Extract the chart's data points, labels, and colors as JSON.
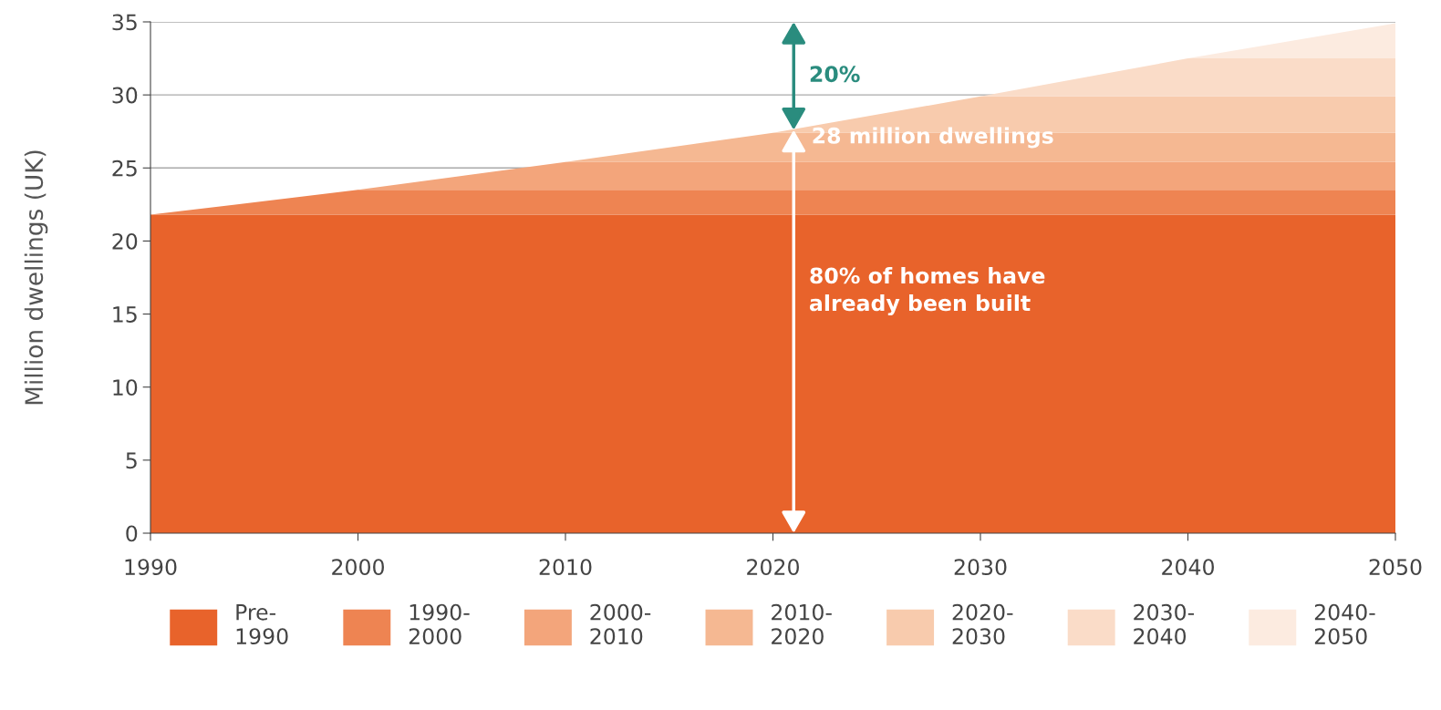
{
  "chart_data": {
    "type": "area",
    "stacked": true,
    "ylabel": "Million dwellings (UK)",
    "x": [
      1990,
      2000,
      2010,
      2020,
      2030,
      2040,
      2050
    ],
    "series": [
      {
        "name": "Pre-\n1990",
        "color": "#e8632b",
        "values": [
          21.8,
          21.8,
          21.8,
          21.8,
          21.8,
          21.8,
          21.8
        ]
      },
      {
        "name": "1990-\n2000",
        "color": "#ee8452",
        "values": [
          0,
          1.7,
          1.7,
          1.7,
          1.7,
          1.7,
          1.7
        ]
      },
      {
        "name": "2000-\n2010",
        "color": "#f3a57b",
        "values": [
          0,
          0,
          1.9,
          1.9,
          1.9,
          1.9,
          1.9
        ]
      },
      {
        "name": "2010-\n2020",
        "color": "#f5b892",
        "values": [
          0,
          0,
          0,
          2.0,
          2.0,
          2.0,
          2.0
        ]
      },
      {
        "name": "2020-\n2030",
        "color": "#f8cbad",
        "values": [
          0,
          0,
          0,
          0,
          2.5,
          2.5,
          2.5
        ]
      },
      {
        "name": "2030-\n2040",
        "color": "#fadcc8",
        "values": [
          0,
          0,
          0,
          0,
          0,
          2.6,
          2.6
        ]
      },
      {
        "name": "2040-\n2050",
        "color": "#fcebe0",
        "values": [
          0,
          0,
          0,
          0,
          0,
          0,
          2.4
        ]
      }
    ],
    "xlim": [
      1990,
      2050
    ],
    "xticks": [
      1990,
      2000,
      2010,
      2020,
      2030,
      2040,
      2050
    ],
    "ylim": [
      0,
      35
    ],
    "yticks": [
      0,
      5,
      10,
      15,
      20,
      25,
      30,
      35
    ],
    "grid": "y",
    "legend": "bottom",
    "annotations": [
      "20%",
      {
        "text": "28 million dwellings",
        "x": 2021,
        "y": 27.6
      },
      "80% of homes have\nalready been built"
    ]
  }
}
